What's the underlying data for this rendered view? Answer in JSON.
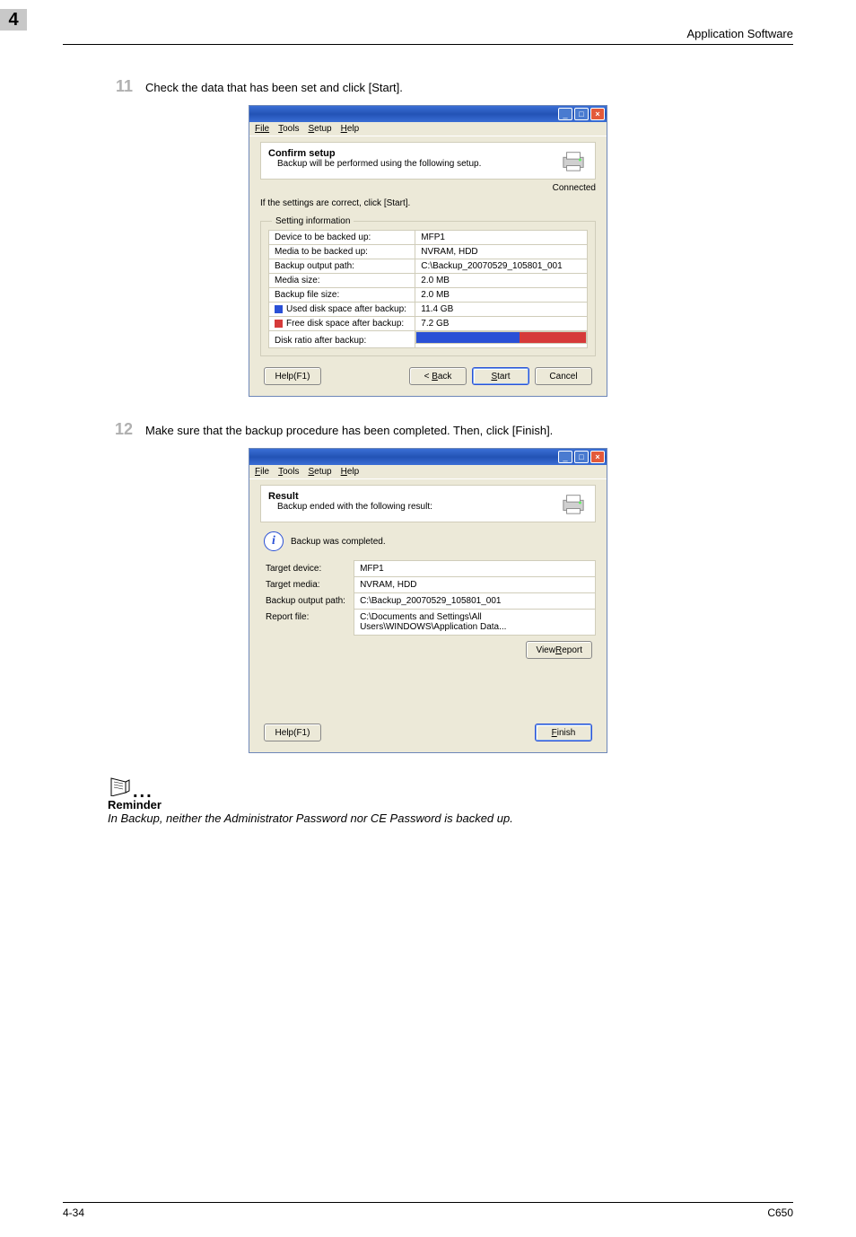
{
  "header": {
    "chapter": "4",
    "title": "Application Software"
  },
  "steps": {
    "s11": {
      "num": "11",
      "text": "Check the data that has been set and click [Start]."
    },
    "s12": {
      "num": "12",
      "text": "Make sure that the backup procedure has been completed. Then, click [Finish]."
    }
  },
  "menubar": {
    "file": "File",
    "tools": "Tools",
    "setup": "Setup",
    "help": "Help"
  },
  "dialog1": {
    "title": "Confirm setup",
    "subtitle": "Backup will be performed using the following setup.",
    "connected": "Connected",
    "instruction": "If the settings are correct, click [Start].",
    "fieldset_title": "Setting information",
    "rows": {
      "device_label": "Device to be backed up:",
      "device_val": "MFP1",
      "media_label": "Media to be backed up:",
      "media_val": "NVRAM, HDD",
      "path_label": "Backup output path:",
      "path_val": "C:\\Backup_20070529_105801_001",
      "msize_label": "Media size:",
      "msize_val": "2.0 MB",
      "bsize_label": "Backup file size:",
      "bsize_val": "2.0 MB",
      "used_label": "Used disk space after backup:",
      "used_val": "11.4 GB",
      "free_label": "Free disk space after backup:",
      "free_val": "7.2 GB",
      "ratio_label": "Disk ratio after backup:"
    },
    "swatch_used": "#2a50d6",
    "swatch_free": "#d63a3a",
    "bar": {
      "used_pct": 61,
      "free_pct": 39
    },
    "buttons": {
      "help": "Help(F1)",
      "back": "< Back",
      "start": "Start",
      "cancel": "Cancel"
    }
  },
  "dialog2": {
    "title": "Result",
    "subtitle": "Backup ended with the following result:",
    "completed": "Backup was completed.",
    "rows": {
      "device_label": "Target device:",
      "device_val": "MFP1",
      "media_label": "Target media:",
      "media_val": "NVRAM, HDD",
      "path_label": "Backup output path:",
      "path_val": "C:\\Backup_20070529_105801_001",
      "report_label": "Report file:",
      "report_val": "C:\\Documents and Settings\\All Users\\WINDOWS\\Application Data..."
    },
    "view_report": "View Report",
    "buttons": {
      "help": "Help(F1)",
      "finish": "Finish"
    }
  },
  "reminder": {
    "title": "Reminder",
    "text": "In Backup, neither the Administrator Password nor CE Password is backed up."
  },
  "footer": {
    "left": "4-34",
    "right": "C650"
  }
}
